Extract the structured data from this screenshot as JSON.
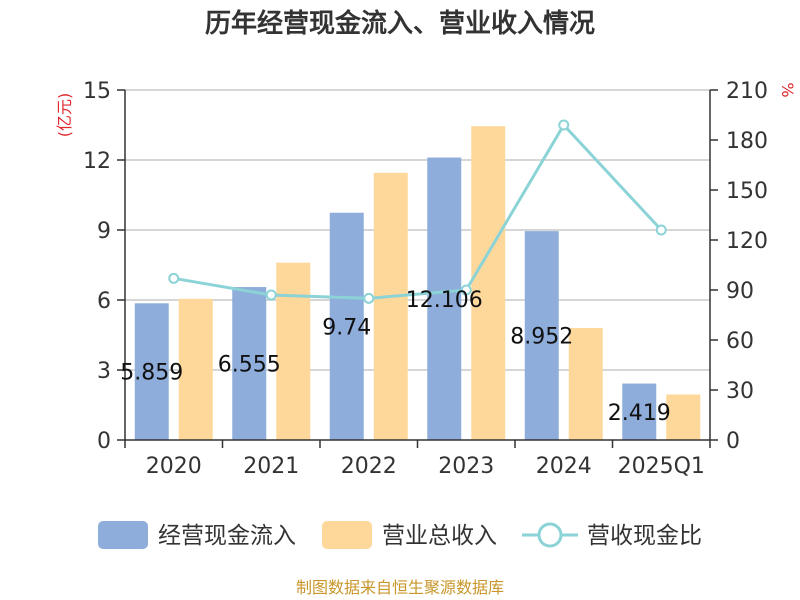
{
  "chart_data": {
    "type": "bar",
    "title": "历年经营现金流入、营业收入情况",
    "categories": [
      "2020",
      "2021",
      "2022",
      "2023",
      "2024",
      "2025Q1"
    ],
    "series": [
      {
        "name": "经营现金流入",
        "type": "bar",
        "axis": "left",
        "color": "#8eaddb",
        "values": [
          5.859,
          6.555,
          9.74,
          12.106,
          8.952,
          2.419
        ],
        "labels": [
          "5.859",
          "6.555",
          "9.74",
          "12.106",
          "8.952",
          "2.419"
        ]
      },
      {
        "name": "营业总收入",
        "type": "bar",
        "axis": "left",
        "color": "#fed89b",
        "values": [
          6.05,
          7.6,
          11.45,
          13.45,
          4.8,
          1.95
        ]
      },
      {
        "name": "营收现金比",
        "type": "line",
        "axis": "right",
        "color": "#8bd3d6",
        "values": [
          97,
          87,
          85,
          90,
          189,
          126
        ]
      }
    ],
    "left_axis": {
      "unit": "(亿元)",
      "ylim": [
        0,
        15
      ],
      "ticks": [
        "0",
        "3",
        "6",
        "9",
        "12",
        "15"
      ]
    },
    "right_axis": {
      "unit": "%",
      "ylim": [
        0,
        210
      ],
      "ticks": [
        "0",
        "30",
        "60",
        "90",
        "120",
        "150",
        "180",
        "210"
      ]
    },
    "grid": true,
    "legend_position": "bottom"
  },
  "source": "制图数据来自恒生聚源数据库"
}
